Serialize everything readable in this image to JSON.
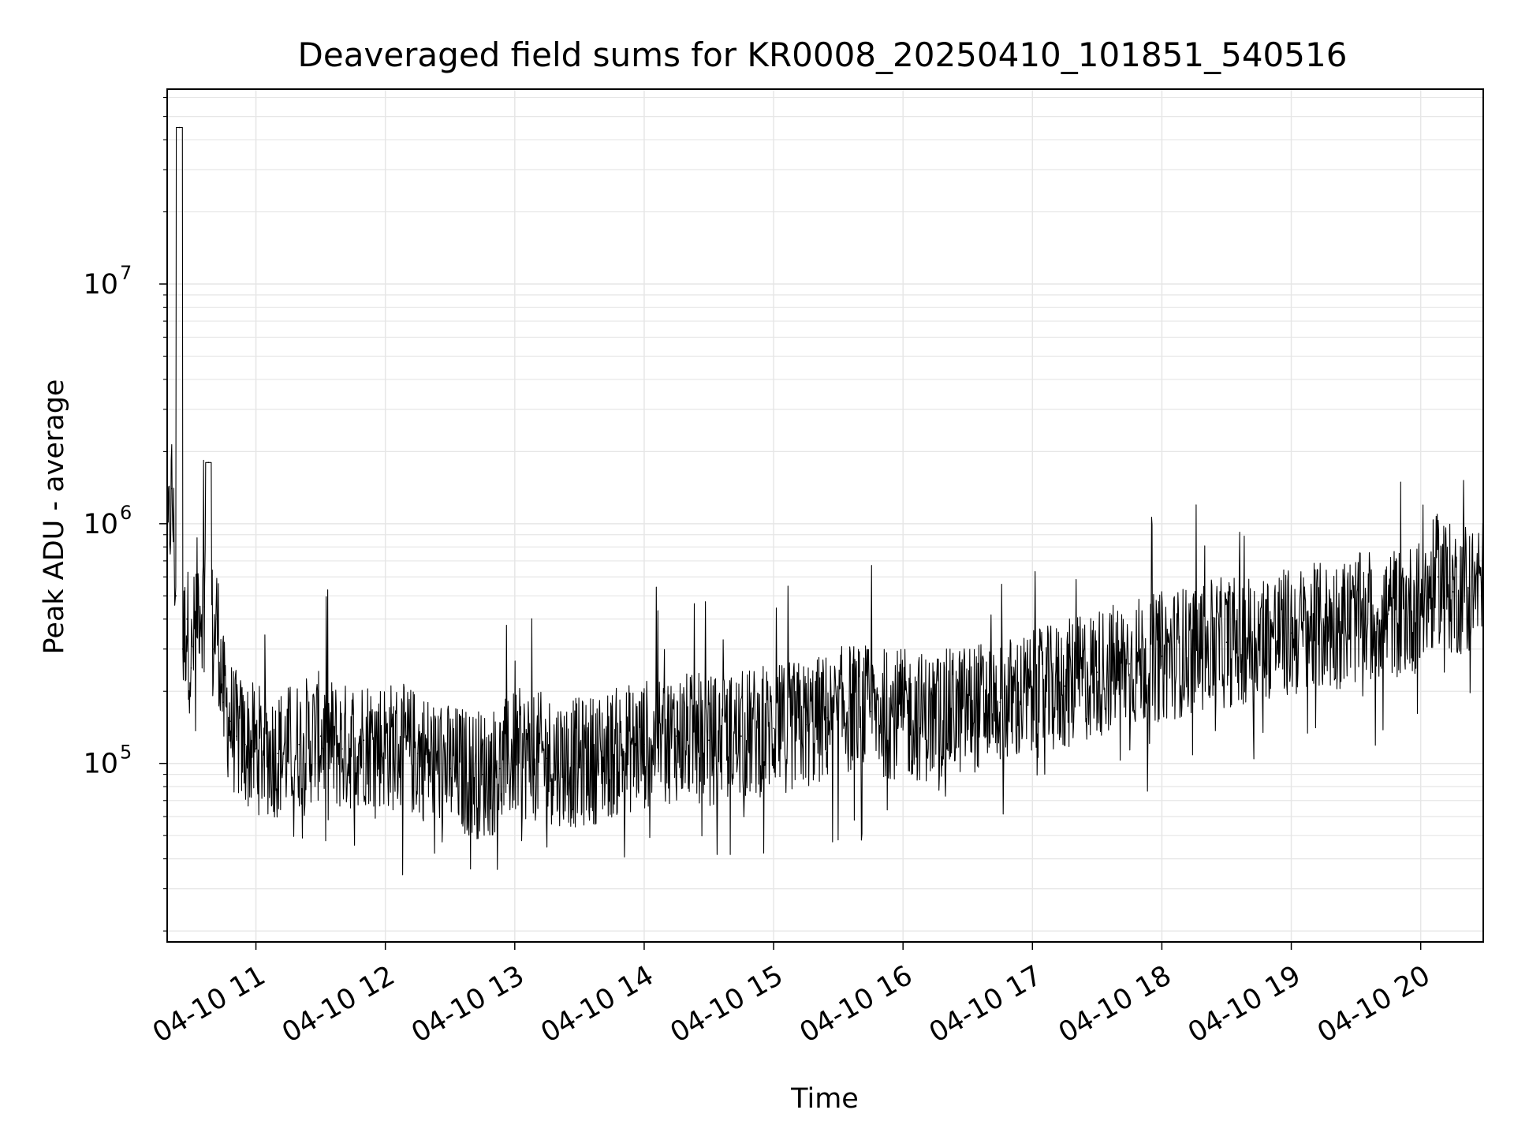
{
  "chart_data": {
    "type": "line",
    "title": "Deaveraged field sums for KR0008_20250410_101851_540516",
    "xlabel": "Time",
    "ylabel": "Peak ADU - average",
    "yscale": "log",
    "ylim": [
      18000,
      65000000
    ],
    "xlim": [
      "2025-04-10T10:18:51",
      "2025-04-10T20:29:00"
    ],
    "grid": true,
    "line_color": "#000000",
    "grid_color": "#e6e6e6",
    "x_ticks": [
      {
        "value": "2025-04-10T11:00:00",
        "label": "04-10 11"
      },
      {
        "value": "2025-04-10T12:00:00",
        "label": "04-10 12"
      },
      {
        "value": "2025-04-10T13:00:00",
        "label": "04-10 13"
      },
      {
        "value": "2025-04-10T14:00:00",
        "label": "04-10 14"
      },
      {
        "value": "2025-04-10T15:00:00",
        "label": "04-10 15"
      },
      {
        "value": "2025-04-10T16:00:00",
        "label": "04-10 16"
      },
      {
        "value": "2025-04-10T17:00:00",
        "label": "04-10 17"
      },
      {
        "value": "2025-04-10T18:00:00",
        "label": "04-10 18"
      },
      {
        "value": "2025-04-10T19:00:00",
        "label": "04-10 19"
      },
      {
        "value": "2025-04-10T20:00:00",
        "label": "04-10 20"
      }
    ],
    "y_ticks": [
      {
        "value": 100000,
        "base": "10",
        "exp": "5"
      },
      {
        "value": 1000000,
        "base": "10",
        "exp": "6"
      },
      {
        "value": 10000000,
        "base": "10",
        "exp": "7"
      }
    ],
    "series": [
      {
        "x": [
          "2025-04-10T10:18:51",
          "2025-04-10T10:21:00",
          "2025-04-10T10:23:00",
          "2025-04-10T10:24:30",
          "2025-04-10T10:26:00",
          "2025-04-10T10:28:00",
          "2025-04-10T10:30:00",
          "2025-04-10T10:33:00",
          "2025-04-10T10:36:00",
          "2025-04-10T10:38:00",
          "2025-04-10T10:40:00",
          "2025-04-10T10:42:00",
          "2025-04-10T10:45:00",
          "2025-04-10T10:48:00",
          "2025-04-10T10:51:00",
          "2025-04-10T10:55:00",
          "2025-04-10T11:00:00",
          "2025-04-10T11:10:00",
          "2025-04-10T11:20:00",
          "2025-04-10T11:30:00",
          "2025-04-10T11:40:00",
          "2025-04-10T11:50:00",
          "2025-04-10T12:00:00",
          "2025-04-10T12:15:00",
          "2025-04-10T12:30:00",
          "2025-04-10T12:45:00",
          "2025-04-10T12:53:00",
          "2025-04-10T13:00:00",
          "2025-04-10T13:15:00",
          "2025-04-10T13:30:00",
          "2025-04-10T13:45:00",
          "2025-04-10T14:00:00",
          "2025-04-10T14:15:00",
          "2025-04-10T14:30:00",
          "2025-04-10T14:45:00",
          "2025-04-10T15:00:00",
          "2025-04-10T15:15:00",
          "2025-04-10T15:25:00",
          "2025-04-10T15:35:00",
          "2025-04-10T15:45:00",
          "2025-04-10T16:00:00",
          "2025-04-10T16:15:00",
          "2025-04-10T16:30:00",
          "2025-04-10T16:45:00",
          "2025-04-10T17:00:00",
          "2025-04-10T17:15:00",
          "2025-04-10T17:30:00",
          "2025-04-10T17:45:00",
          "2025-04-10T18:00:00",
          "2025-04-10T18:15:00",
          "2025-04-10T18:30:00",
          "2025-04-10T18:45:00",
          "2025-04-10T19:00:00",
          "2025-04-10T19:15:00",
          "2025-04-10T19:30:00",
          "2025-04-10T19:45:00",
          "2025-04-10T20:00:00",
          "2025-04-10T20:08:00",
          "2025-04-10T20:15:00",
          "2025-04-10T20:22:00",
          "2025-04-10T20:29:00"
        ],
        "y": [
          700000,
          1400000,
          500000,
          45000000,
          300000,
          400000,
          250000,
          500000,
          450000,
          1800000,
          300000,
          400000,
          180000,
          150000,
          130000,
          120000,
          115000,
          110000,
          120000,
          130000,
          115000,
          125000,
          120000,
          110000,
          95000,
          90000,
          95000,
          110000,
          105000,
          100000,
          110000,
          120000,
          130000,
          125000,
          130000,
          140000,
          145000,
          155000,
          170000,
          165000,
          160000,
          155000,
          170000,
          180000,
          190000,
          210000,
          240000,
          260000,
          280000,
          300000,
          320000,
          340000,
          350000,
          370000,
          400000,
          420000,
          450000,
          600000,
          520000,
          540000,
          560000
        ]
      }
    ]
  }
}
